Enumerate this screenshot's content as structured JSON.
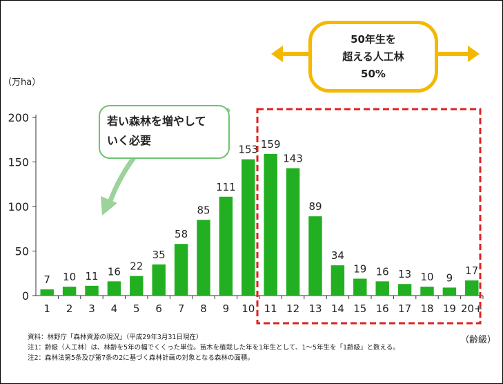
{
  "chart_data": {
    "type": "bar",
    "categories": [
      "1",
      "2",
      "3",
      "4",
      "5",
      "6",
      "7",
      "8",
      "9",
      "10",
      "11",
      "12",
      "13",
      "14",
      "15",
      "16",
      "17",
      "18",
      "19",
      "20+"
    ],
    "values": [
      7,
      10,
      11,
      16,
      22,
      35,
      58,
      85,
      111,
      153,
      159,
      143,
      89,
      34,
      19,
      16,
      13,
      10,
      9,
      17
    ],
    "ylim": [
      0,
      200
    ],
    "yticks": [
      0,
      50,
      100,
      150,
      200
    ],
    "ylabel": "（万ha）",
    "xlabel": "（齢級）",
    "bar_color": "#22b022",
    "highlight": {
      "from_category": "11",
      "to_category": "20+",
      "color": "#e02020"
    }
  },
  "callout": {
    "lines": [
      "50年生を",
      "超える人工林",
      "50%"
    ],
    "border_color": "#f5b800"
  },
  "note": {
    "lines": [
      "若い森林を増やして",
      "いく必要"
    ],
    "border_color": "#6cc36c"
  },
  "footnotes": [
    "資料：林野庁「森林資源の現況」（平成29年3月31日現在）",
    "注1：齢級（人工林）は、林齢を5年の幅でくくった単位。苗木を植栽した年を1年生として、1～5年生を「1齢級」と数える。",
    "注2：森林法第5条及び第7条の2に基づく森林計画の対象となる森林の面積。"
  ]
}
